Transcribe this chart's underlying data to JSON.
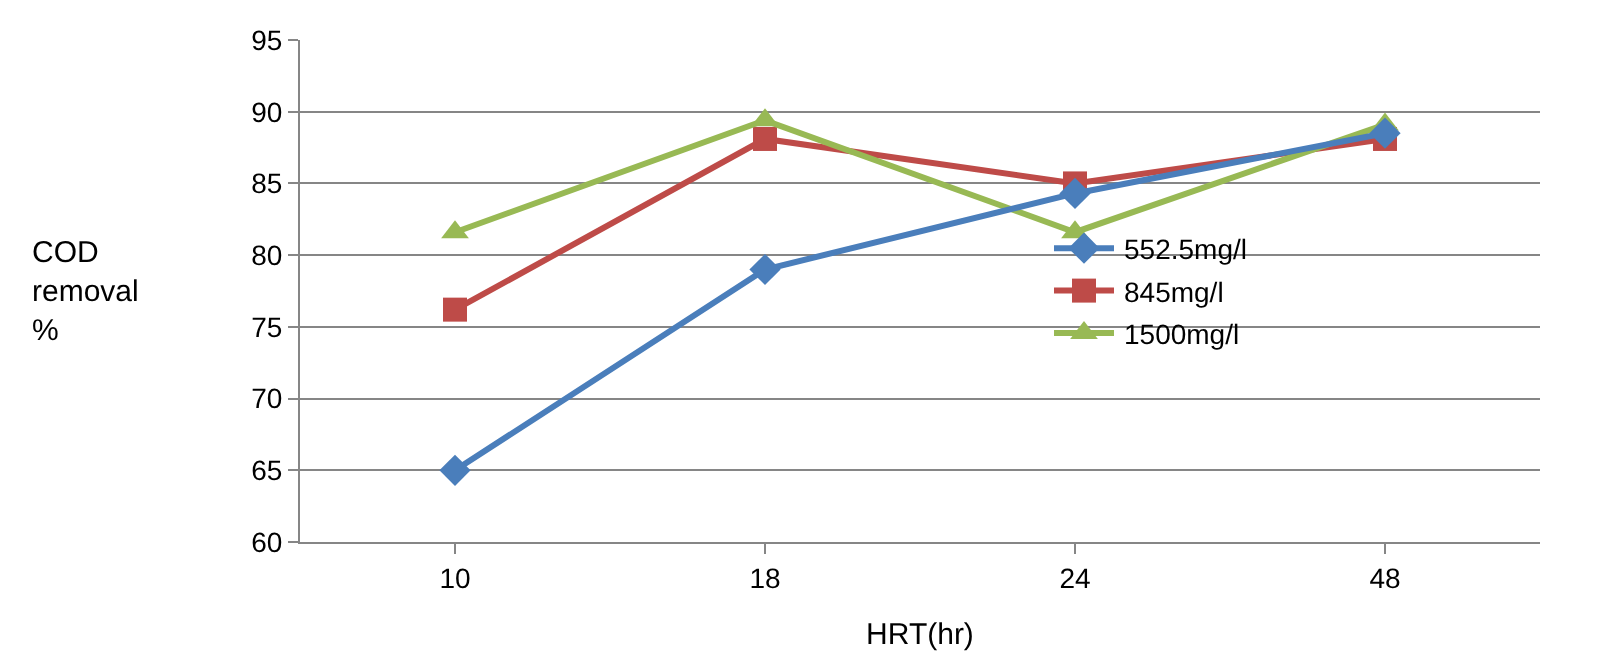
{
  "chart_data": {
    "type": "line",
    "xlabel": "HRT(hr)",
    "ylabel": "COD\nremoval\n%",
    "categories": [
      "10",
      "18",
      "24",
      "48"
    ],
    "series": [
      {
        "name": "552.5mg/l",
        "color": "#4a7ebb",
        "marker": "diamond",
        "values": [
          65,
          79,
          84.3,
          88.5
        ]
      },
      {
        "name": "845mg/l",
        "color": "#be4b48",
        "marker": "square",
        "values": [
          76.2,
          88.1,
          85,
          88.1
        ]
      },
      {
        "name": "1500mg/l",
        "color": "#98b954",
        "marker": "triangle",
        "values": [
          81.6,
          89.4,
          81.6,
          89.1
        ]
      }
    ],
    "ylim": [
      60,
      95
    ],
    "yticks": [
      60,
      65,
      70,
      75,
      80,
      85,
      90,
      95
    ],
    "grid": "y",
    "legend": "right",
    "line_style": "solid"
  }
}
